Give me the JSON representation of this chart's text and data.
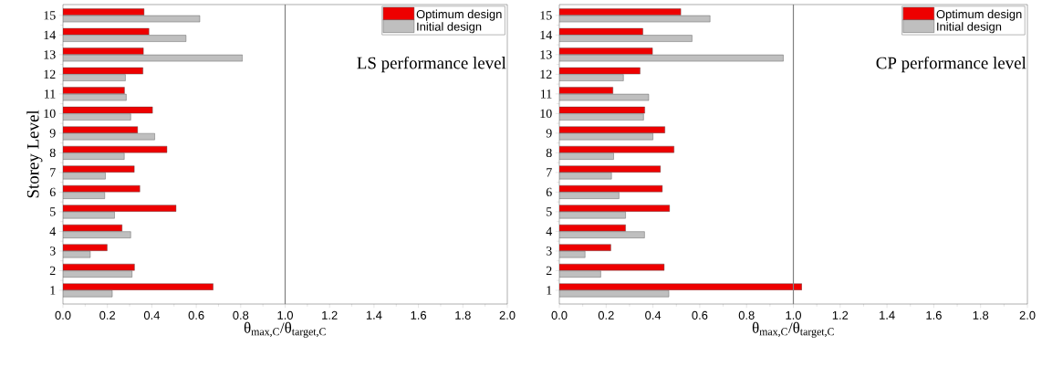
{
  "chart_data": [
    {
      "type": "bar",
      "orientation": "horizontal",
      "categories": [
        "15",
        "14",
        "13",
        "12",
        "11",
        "10",
        "9",
        "8",
        "7",
        "6",
        "5",
        "4",
        "3",
        "2",
        "1"
      ],
      "series": [
        {
          "name": "Optimum design",
          "color": "#ee0000",
          "values": [
            0.365,
            0.387,
            0.362,
            0.36,
            0.277,
            0.403,
            0.336,
            0.468,
            0.321,
            0.346,
            0.509,
            0.266,
            0.199,
            0.322,
            0.676
          ]
        },
        {
          "name": "Initial design",
          "color": "#bfbfbf",
          "values": [
            0.616,
            0.554,
            0.808,
            0.281,
            0.285,
            0.305,
            0.413,
            0.276,
            0.191,
            0.188,
            0.232,
            0.305,
            0.123,
            0.311,
            0.222
          ]
        }
      ],
      "xlabel": "θ$_{max,C}$/θ$_{target,C}$",
      "ylabel": "Storey Level",
      "xlim": [
        0,
        2
      ],
      "xticks": [
        {
          "value": 0,
          "label": "0.0"
        },
        {
          "value": 0.2,
          "label": "0.2"
        },
        {
          "value": 0.4,
          "label": "0.4"
        },
        {
          "value": 0.6,
          "label": "0.6"
        },
        {
          "value": 0.8,
          "label": "0.8"
        },
        {
          "value": 1,
          "label": "1.0"
        },
        {
          "value": 1.2,
          "label": "1.2"
        },
        {
          "value": 1.4,
          "label": "1.4"
        },
        {
          "value": 1.6,
          "label": "1.6"
        },
        {
          "value": 1.8,
          "label": "1.8"
        },
        {
          "value": 2,
          "label": "2.0"
        }
      ],
      "ref_lines": [
        {
          "axis": "x",
          "value": 1,
          "color": "#808080"
        }
      ],
      "annotations": [
        "LS performance level"
      ],
      "legend": "top right"
    },
    {
      "type": "bar",
      "orientation": "horizontal",
      "categories": [
        "15",
        "14",
        "13",
        "12",
        "11",
        "10",
        "9",
        "8",
        "7",
        "6",
        "5",
        "4",
        "3",
        "2",
        "1"
      ],
      "series": [
        {
          "name": "Optimum design",
          "color": "#ee0000",
          "values": [
            0.519,
            0.357,
            0.398,
            0.345,
            0.229,
            0.365,
            0.451,
            0.49,
            0.432,
            0.44,
            0.471,
            0.283,
            0.22,
            0.448,
            1.036
          ]
        },
        {
          "name": "Initial design",
          "color": "#bfbfbf",
          "values": [
            0.644,
            0.567,
            0.957,
            0.274,
            0.382,
            0.36,
            0.4,
            0.232,
            0.223,
            0.255,
            0.283,
            0.364,
            0.11,
            0.177,
            0.468
          ]
        }
      ],
      "xlabel": "θ$_{max,C}$/θ$_{target,C}$",
      "xlim": [
        0,
        2
      ],
      "xticks": [
        {
          "value": 0,
          "label": "0.0"
        },
        {
          "value": 0.2,
          "label": "0.2"
        },
        {
          "value": 0.4,
          "label": "0.4"
        },
        {
          "value": 0.6,
          "label": "0.6"
        },
        {
          "value": 0.8,
          "label": "0.8"
        },
        {
          "value": 1,
          "label": "1.0"
        },
        {
          "value": 1.2,
          "label": "1.2"
        },
        {
          "value": 1.4,
          "label": "1.4"
        },
        {
          "value": 1.6,
          "label": "1.6"
        },
        {
          "value": 1.8,
          "label": "1.8"
        },
        {
          "value": 2,
          "label": "2.0"
        }
      ],
      "ref_lines": [
        {
          "axis": "x",
          "value": 1,
          "color": "#808080"
        }
      ],
      "annotations": [
        "CP performance level"
      ],
      "legend": "top right"
    }
  ]
}
